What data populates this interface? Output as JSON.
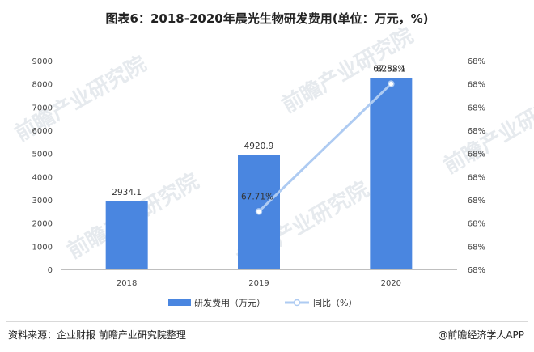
{
  "title": "图表6：2018-2020年晨光生物研发费用(单位：万元，%)",
  "watermark": "前瞻产业研究院",
  "chart_data": {
    "type": "bar",
    "categories": [
      "2018",
      "2019",
      "2020"
    ],
    "series": [
      {
        "name": "研发费用（万元）",
        "kind": "bar",
        "axis": "left",
        "values": [
          2934.1,
          4920.9,
          8258.1
        ],
        "labels": [
          "2934.1",
          "4920.9",
          "8258.1"
        ],
        "color": "#4a86e0"
      },
      {
        "name": "同比（%）",
        "kind": "line",
        "axis": "right",
        "values": [
          null,
          67.71,
          67.82
        ],
        "labels": [
          "",
          "67.71%",
          "67.82%"
        ],
        "color": "#aecbf2"
      }
    ],
    "y_left": {
      "min": 0,
      "max": 9000,
      "ticks": [
        "0",
        "1000",
        "2000",
        "3000",
        "4000",
        "5000",
        "6000",
        "7000",
        "8000",
        "9000"
      ]
    },
    "y_right": {
      "min": 67.66,
      "max": 67.84,
      "ticks": [
        "68%",
        "68%",
        "68%",
        "68%",
        "68%",
        "68%",
        "68%",
        "68%",
        "68%",
        "68%"
      ]
    },
    "legend_position": "bottom",
    "grid": false
  },
  "footer": {
    "source": "资料来源：企业财报 前瞻产业研究院整理",
    "brand": "@前瞻经济学人APP"
  }
}
